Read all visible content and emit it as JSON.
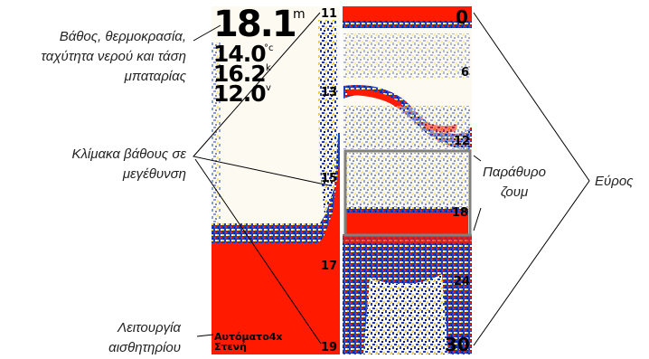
{
  "callouts": {
    "readouts": [
      "Βάθος, θερμοκρασία,",
      "ταχύτητα νερού και τάση",
      "μπαταρίας"
    ],
    "zoom_scale": [
      "Κλίμακα βάθους σε",
      "μεγέθυνση"
    ],
    "sensor_mode": [
      "Λειτουργία",
      "αισθητηρίου"
    ],
    "zoom_window": [
      "Παράθυρο",
      "ζουμ"
    ],
    "range": "Εύρος"
  },
  "readouts": {
    "depth": "18.1",
    "depth_unit": "m",
    "temperature": "14.0",
    "temperature_unit": "°c",
    "speed": "16.2",
    "speed_unit": "k",
    "voltage": "12.0",
    "voltage_unit": "v"
  },
  "zoom_scale_labels": [
    "11",
    "13",
    "15",
    "17",
    "19"
  ],
  "range_scale_labels": [
    "0",
    "6",
    "12",
    "18",
    "24",
    "30"
  ],
  "sensor_mode": [
    "Αυτόματο4x",
    "Στενή"
  ],
  "colors": {
    "bottom_red": "#ff1a00",
    "echo_yellow": "#f2d11a",
    "echo_blue": "#1c3fb8",
    "echo_navy": "#0a1a5c",
    "background": "#fdfaf2",
    "zoom_frame": "#808080"
  }
}
